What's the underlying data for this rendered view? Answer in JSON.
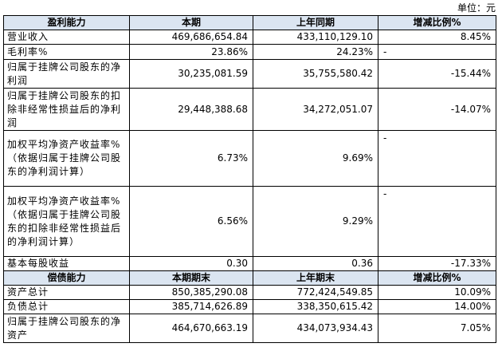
{
  "unit_label": "单位：元",
  "profit": {
    "headers": [
      "盈利能力",
      "本期",
      "上年同期",
      "增减比例%"
    ],
    "rows": [
      {
        "label": "营业收入",
        "current": "469,686,654.84",
        "previous": "433,110,129.10",
        "change": "8.45%",
        "dash": ""
      },
      {
        "label": "毛利率%",
        "current": "23.86%",
        "previous": "24.23%",
        "change": "",
        "dash": "-"
      },
      {
        "label": "归属于挂牌公司股东的净利润",
        "current": "30,235,081.59",
        "previous": "35,755,580.42",
        "change": "-15.44%",
        "dash": ""
      },
      {
        "label": "归属于挂牌公司股东的扣除非经常性损益后的净利润",
        "current": "29,448,388.68",
        "previous": "34,272,051.07",
        "change": "-14.07%",
        "dash": ""
      },
      {
        "label": "加权平均净资产收益率%（依据归属于挂牌公司股东的净利润计算）",
        "current": "6.73%",
        "previous": "9.69%",
        "change": "",
        "dash": "-"
      },
      {
        "label": "加权平均净资产收益率%（依据归属于挂牌公司股东的扣除非经常性损益后的净利润计算）",
        "current": "6.56%",
        "previous": "9.29%",
        "change": "",
        "dash": "-"
      },
      {
        "label": "基本每股收益",
        "current": "0.30",
        "previous": "0.36",
        "change": "-17.33%",
        "dash": ""
      }
    ]
  },
  "solvency": {
    "headers": [
      "偿债能力",
      "本期期末",
      "上年期末",
      "增减比例%"
    ],
    "rows": [
      {
        "label": "资产总计",
        "current": "850,385,290.08",
        "previous": "772,424,549.85",
        "change": "10.09%"
      },
      {
        "label": "负债总计",
        "current": "385,714,626.89",
        "previous": "338,350,615.42",
        "change": "14.00%"
      },
      {
        "label": "归属于挂牌公司股东的净资产",
        "current": "464,670,663.19",
        "previous": "434,073,934.43",
        "change": "7.05%"
      }
    ]
  }
}
